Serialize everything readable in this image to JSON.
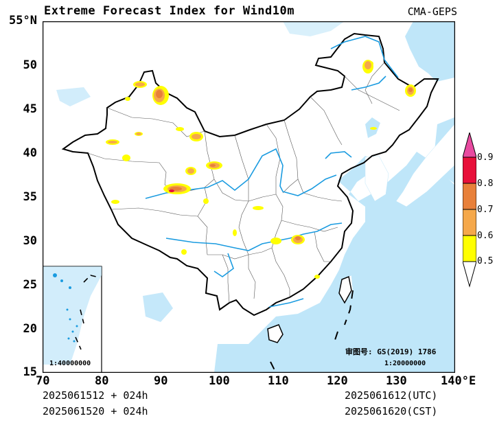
{
  "title": "Extreme Forecast Index for Wind10m",
  "model": "CMA-GEPS",
  "init_utc": "2025061512 + 024h",
  "init_cst": "2025061520 + 024h",
  "valid_utc": "2025061612(UTC)",
  "valid_cst": "2025061620(CST)",
  "axes": {
    "x_ticks": [
      "70",
      "80",
      "90",
      "100",
      "110",
      "120",
      "130",
      "140°E"
    ],
    "y_ticks": [
      "55°N",
      "50",
      "45",
      "40",
      "35",
      "30",
      "25",
      "20",
      "15"
    ],
    "xlim": [
      70,
      140
    ],
    "ylim": [
      15,
      55
    ]
  },
  "legend": {
    "levels": [
      "0.5",
      "0.6",
      "0.7",
      "0.8",
      "0.9"
    ],
    "colors": [
      "#ffff00",
      "#f5a84a",
      "#e8803a",
      "#e8103a",
      "#e84aa0"
    ]
  },
  "approval_number": "审图号: GS(2019) 1786",
  "main_scale": "1:20000000",
  "inset_scale": "1:40000000",
  "colors": {
    "sea": "#bfe6f9",
    "river": "#1a9be0",
    "border": "#000000",
    "province": "#555555"
  }
}
